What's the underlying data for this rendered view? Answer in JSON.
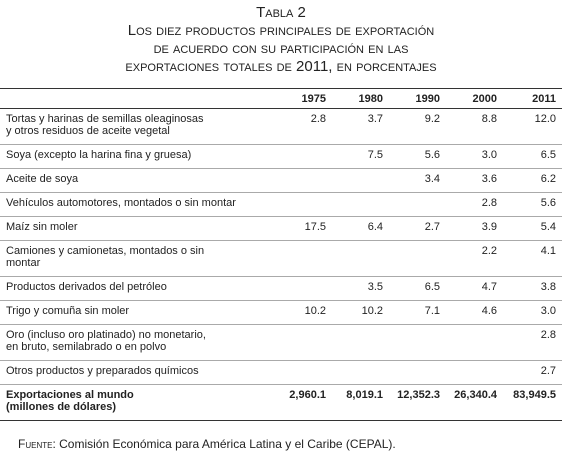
{
  "title": {
    "label": "Tabla 2",
    "lines": [
      "Los diez productos principales de exportación",
      "de acuerdo con su participación en las",
      "exportaciones totales de 2011, en porcentajes"
    ]
  },
  "table": {
    "columns": [
      1975,
      1980,
      1990,
      2000,
      2011
    ],
    "rows": [
      {
        "label": [
          "Tortas y harinas de semillas oleaginosas",
          "y otros residuos de aceite vegetal"
        ],
        "values": [
          "2.8",
          "3.7",
          "9.2",
          "8.8",
          "12.0"
        ]
      },
      {
        "label": [
          "Soya (excepto la harina fina y gruesa)"
        ],
        "values": [
          null,
          "7.5",
          "5.6",
          "3.0",
          "6.5"
        ]
      },
      {
        "label": [
          "Aceite de soya"
        ],
        "values": [
          null,
          null,
          "3.4",
          "3.6",
          "6.2"
        ]
      },
      {
        "label": [
          "Vehículos automotores, montados o sin montar"
        ],
        "values": [
          null,
          null,
          null,
          "2.8",
          "5.6"
        ]
      },
      {
        "label": [
          "Maíz sin moler"
        ],
        "values": [
          "17.5",
          "6.4",
          "2.7",
          "3.9",
          "5.4"
        ]
      },
      {
        "label": [
          "Camiones y camionetas, montados o sin",
          "montar"
        ],
        "values": [
          null,
          null,
          null,
          "2.2",
          "4.1"
        ]
      },
      {
        "label": [
          "Productos derivados del petróleo"
        ],
        "values": [
          null,
          "3.5",
          "6.5",
          "4.7",
          "3.8"
        ]
      },
      {
        "label": [
          "Trigo y comuña sin moler"
        ],
        "values": [
          "10.2",
          "10.2",
          "7.1",
          "4.6",
          "3.0"
        ]
      },
      {
        "label": [
          "Oro (incluso oro platinado) no monetario,",
          "en bruto, semilabrado o en polvo"
        ],
        "values": [
          null,
          null,
          null,
          null,
          "2.8"
        ]
      },
      {
        "label": [
          "Otros productos y preparados químicos"
        ],
        "values": [
          null,
          null,
          null,
          null,
          "2.7"
        ]
      }
    ],
    "total": {
      "label": [
        "Exportaciones al mundo",
        "(millones de dólares)"
      ],
      "values": [
        "2,960.1",
        "8,019.1",
        "12,352.3",
        "26,340.4",
        "83,949.5"
      ]
    }
  },
  "source": {
    "label": "Fuente",
    "text": ": Comisión Económica para América Latina y el Caribe (CEPAL)."
  }
}
